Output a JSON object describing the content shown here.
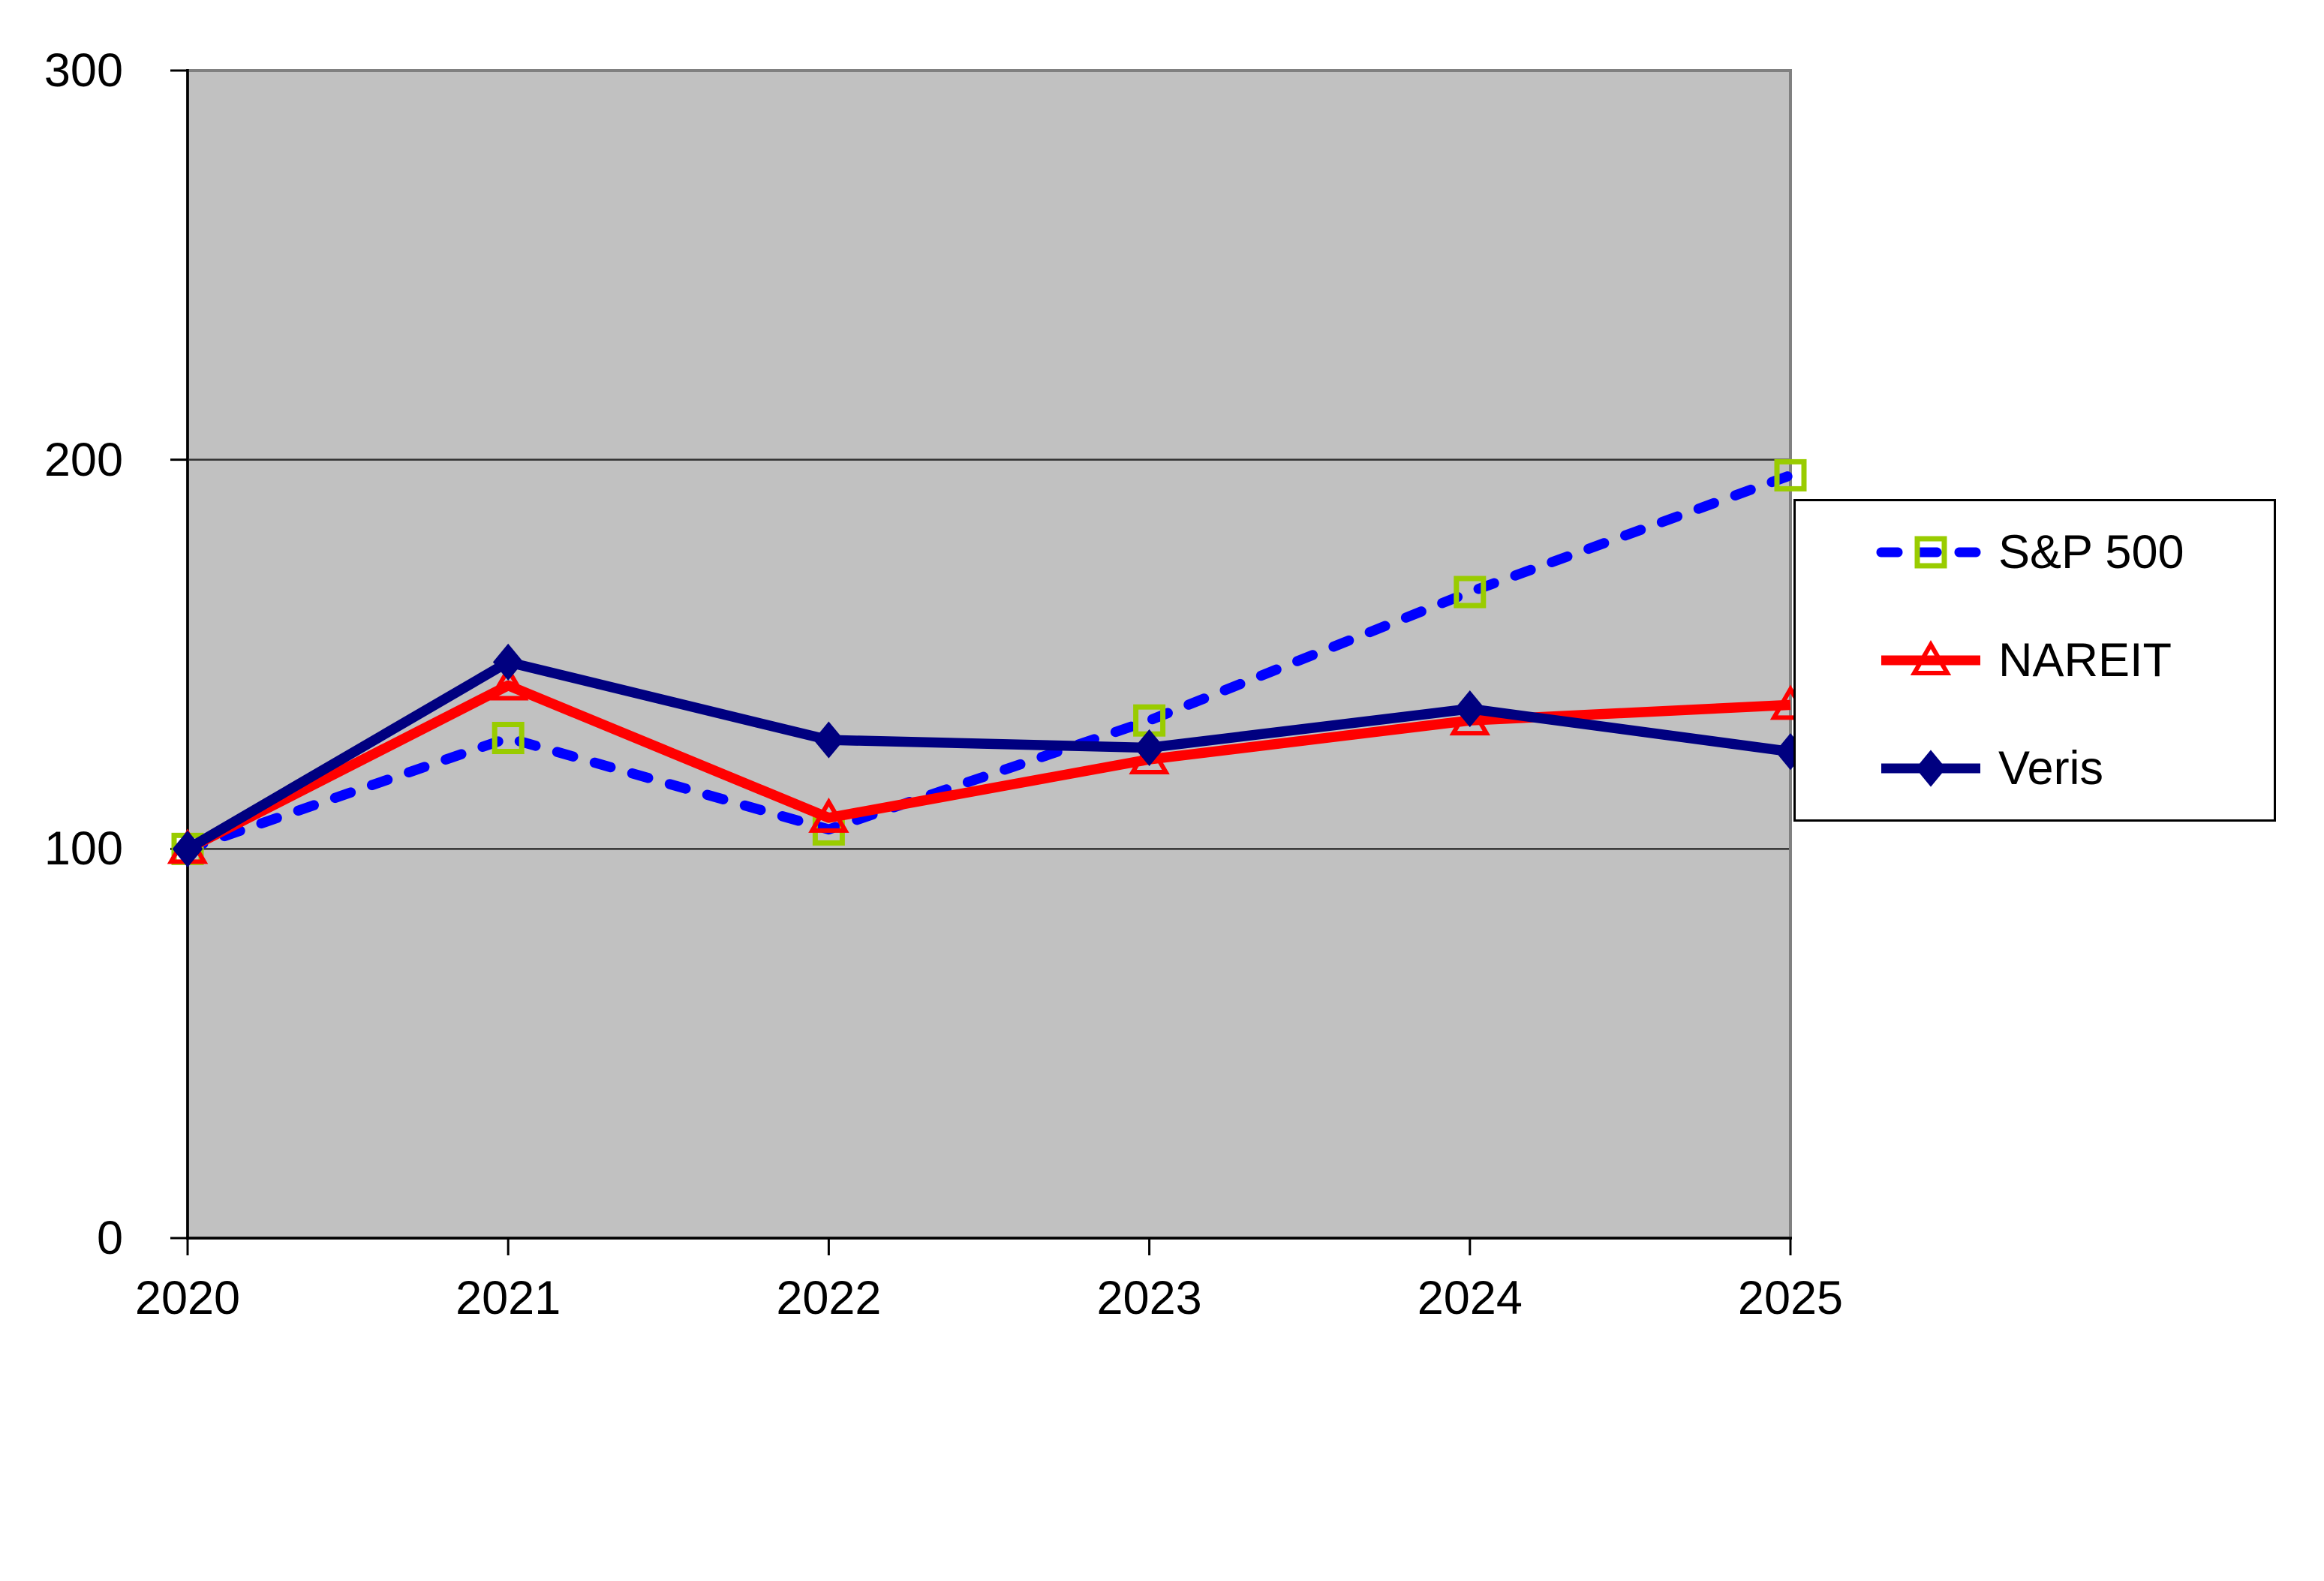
{
  "chart_data": {
    "type": "line",
    "title": "",
    "categories": [
      "2020",
      "2021",
      "2022",
      "2023",
      "2024",
      "2025"
    ],
    "series": [
      {
        "name": "S&P 500",
        "values": [
          100,
          128.5,
          105,
          133,
          166,
          196
        ],
        "line_color": "#0000FF",
        "line_style": "dashed",
        "marker": "open-square",
        "marker_color": "#99CC00"
      },
      {
        "name": "NAREIT",
        "values": [
          100,
          142,
          108,
          123,
          133,
          137
        ],
        "line_color": "#FF0000",
        "line_style": "solid",
        "marker": "open-triangle",
        "marker_color": "#FF0000"
      },
      {
        "name": "Veris",
        "values": [
          100,
          148,
          128,
          126,
          136,
          125
        ],
        "line_color": "#000080",
        "line_style": "solid",
        "marker": "filled-diamond",
        "marker_color": "#000080"
      }
    ],
    "x_axis": {
      "tick_labels": [
        "2020",
        "2021",
        "2022",
        "2023",
        "2024",
        "2025"
      ]
    },
    "y_axis": {
      "min": 0,
      "max": 300,
      "tick_step": 100,
      "tick_values": [
        0,
        100,
        200,
        300
      ],
      "tick_labels": [
        "0",
        "100",
        "200",
        "300"
      ]
    },
    "gridlines": {
      "horizontal_at": [
        100,
        200
      ],
      "color": "#303030"
    },
    "plot_background": "#C1C1C1",
    "plot_border_color": "#808080",
    "axis_color": "#000000",
    "legend_position": "right",
    "legend_background": "#FFFFFF",
    "legend_border_color": "#000000"
  }
}
